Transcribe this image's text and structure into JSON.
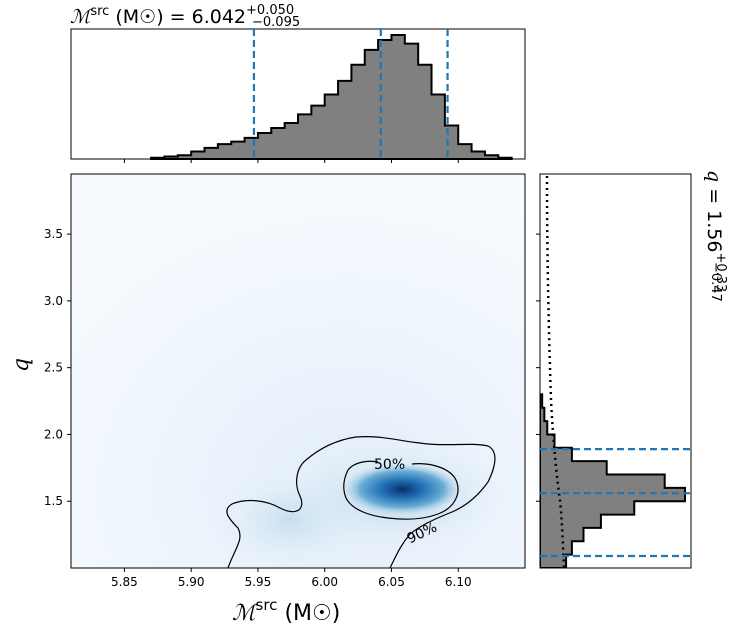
{
  "chart_data": [
    {
      "type": "area",
      "panel": "top-marginal",
      "title": "M^src (M☉) = 6.042 +0.050 / −0.095",
      "title_parts": {
        "symbol": "ℳ",
        "sup": "src",
        "unit": "(M☉)",
        "value": "6.042",
        "plus": "+0.050",
        "minus": "−0.095"
      },
      "xlim": [
        5.81,
        6.15
      ],
      "x": [
        5.875,
        5.885,
        5.895,
        5.905,
        5.915,
        5.925,
        5.935,
        5.945,
        5.955,
        5.965,
        5.975,
        5.985,
        5.995,
        6.005,
        6.015,
        6.025,
        6.035,
        6.045,
        6.055,
        6.065,
        6.075,
        6.085,
        6.095,
        6.105,
        6.115,
        6.125,
        6.135
      ],
      "values": [
        0.01,
        0.02,
        0.03,
        0.06,
        0.09,
        0.12,
        0.14,
        0.17,
        0.21,
        0.25,
        0.29,
        0.36,
        0.43,
        0.52,
        0.63,
        0.76,
        0.88,
        0.96,
        1.0,
        0.93,
        0.76,
        0.52,
        0.27,
        0.12,
        0.06,
        0.03,
        0.01
      ],
      "quantile_lines": [
        5.947,
        6.042,
        6.092
      ],
      "color": "#808080",
      "line_color": "#1f77b4"
    },
    {
      "type": "heatmap",
      "panel": "joint",
      "xlabel": "ℳsrc (M☉)",
      "xlabel_parts": {
        "symbol": "ℳ",
        "sup": "src",
        "unit": "(M☉)"
      },
      "ylabel": "q",
      "xlim": [
        5.81,
        6.15
      ],
      "ylim": [
        1.0,
        3.95
      ],
      "xticks": [
        "5.85",
        "5.90",
        "5.95",
        "6.00",
        "6.05",
        "6.10"
      ],
      "yticks": [
        "1.5",
        "2.0",
        "2.5",
        "3.0",
        "3.5"
      ],
      "peak": {
        "x": 6.058,
        "y": 1.59
      },
      "contour_labels": [
        "50%",
        "90%"
      ],
      "colormap": [
        "#f7fbff",
        "#c6dbef",
        "#6baed6",
        "#2171b5",
        "#08306b"
      ]
    },
    {
      "type": "area",
      "panel": "right-marginal",
      "title": "q = 1.56 +0.33 / −0.47",
      "title_parts": {
        "symbol": "q",
        "value": "1.56",
        "plus": "+0.33",
        "minus": "−0.47"
      },
      "ylim": [
        1.0,
        3.95
      ],
      "y": [
        1.05,
        1.15,
        1.25,
        1.35,
        1.45,
        1.55,
        1.65,
        1.75,
        1.85,
        1.95,
        2.05,
        2.15,
        2.25
      ],
      "values": [
        0.18,
        0.22,
        0.3,
        0.42,
        0.65,
        1.0,
        0.86,
        0.46,
        0.22,
        0.1,
        0.05,
        0.03,
        0.015
      ],
      "quantile_lines": [
        1.09,
        1.56,
        1.89
      ],
      "prior_dotted": true
    }
  ]
}
